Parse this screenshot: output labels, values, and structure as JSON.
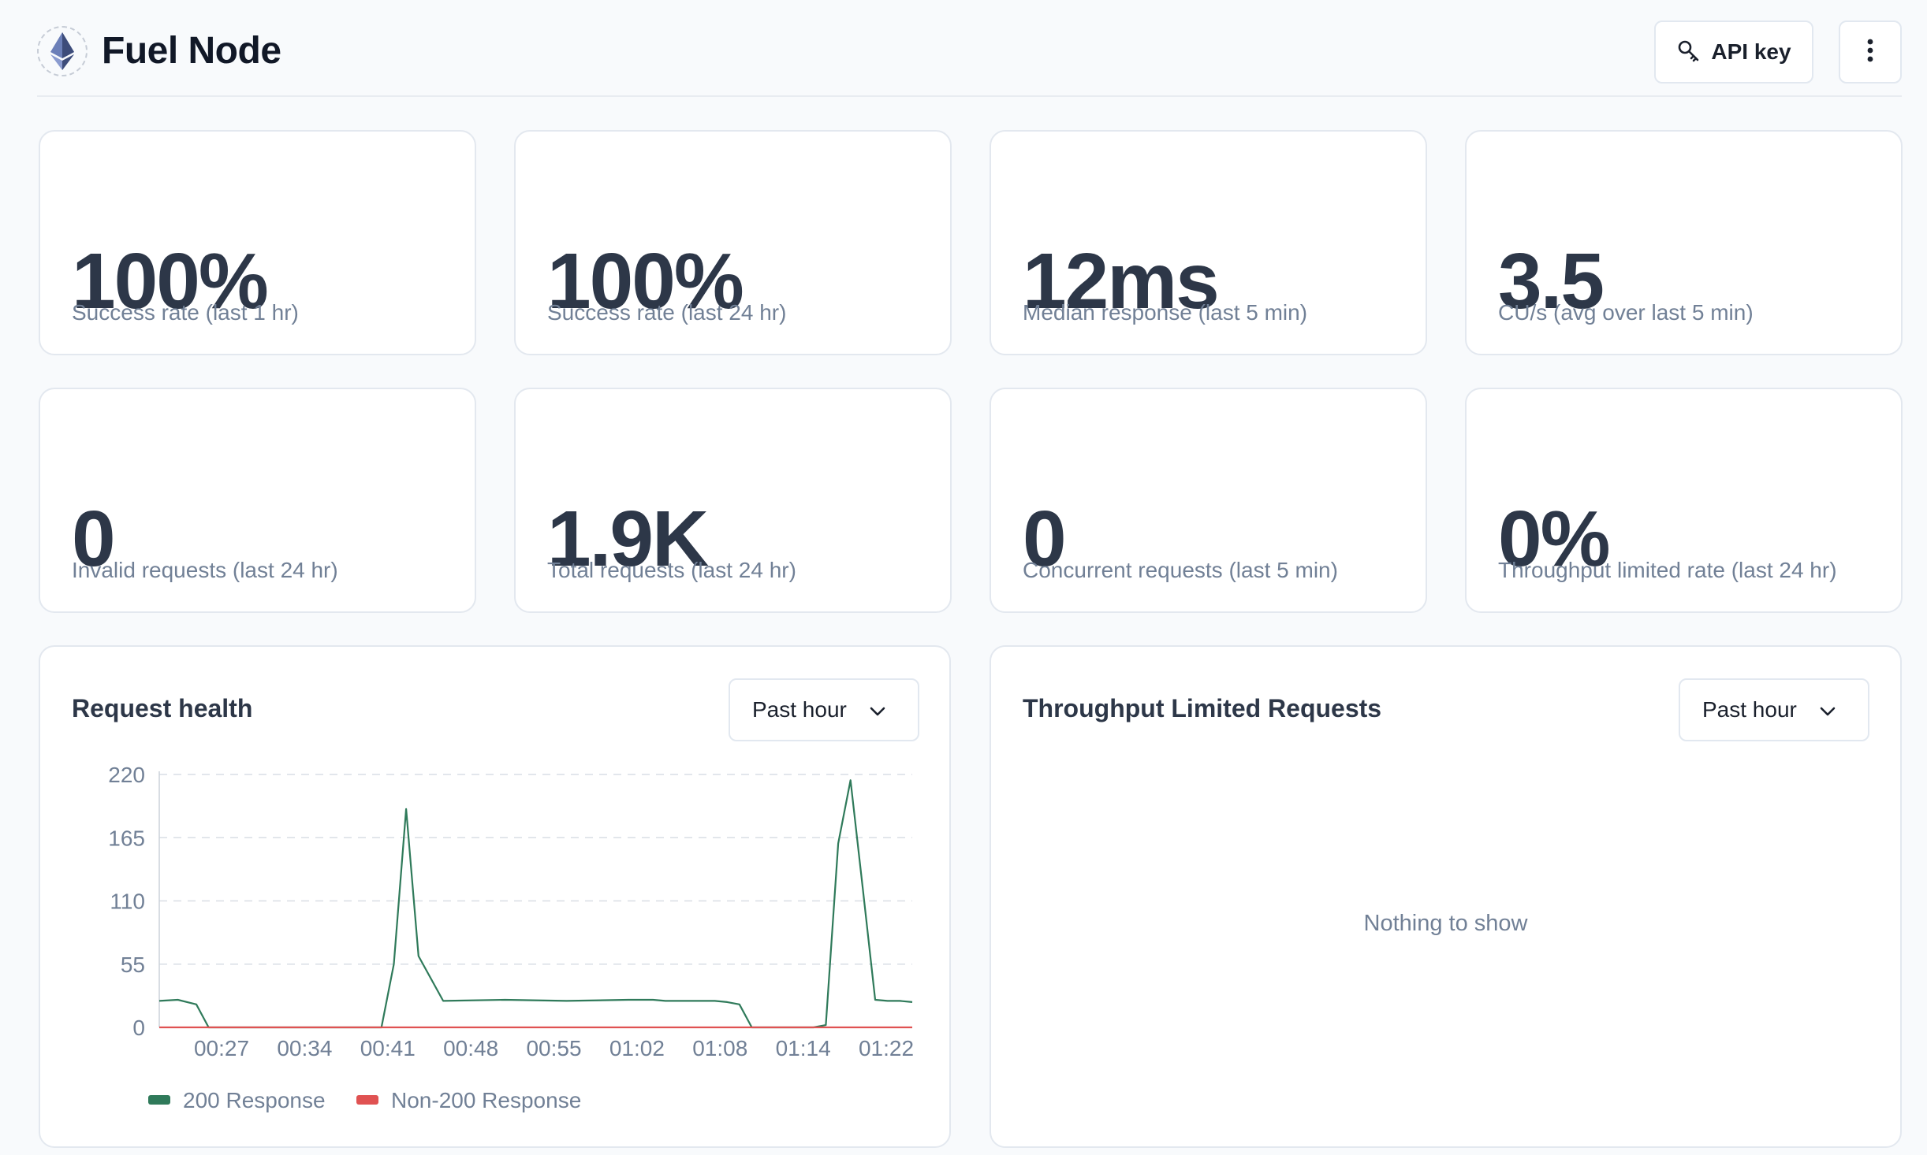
{
  "header": {
    "title": "Fuel Node",
    "logo_icon": "ethereum-icon",
    "api_key_label": "API key",
    "api_key_icon": "key-icon",
    "more_icon": "kebab-menu-icon"
  },
  "stats": [
    {
      "value": "100%",
      "label": "Success rate (last 1 hr)"
    },
    {
      "value": "100%",
      "label": "Success rate (last 24 hr)"
    },
    {
      "value": "12ms",
      "label": "Median response (last 5 min)"
    },
    {
      "value": "3.5",
      "label": "CU/s (avg over last 5 min)"
    },
    {
      "value": "0",
      "label": "Invalid requests (last 24 hr)"
    },
    {
      "value": "1.9K",
      "label": "Total requests (last 24 hr)"
    },
    {
      "value": "0",
      "label": "Concurrent requests (last 5 min)"
    },
    {
      "value": "0%",
      "label": "Throughput limited rate (last 24 hr)"
    }
  ],
  "request_health": {
    "title": "Request health",
    "range_label": "Past hour"
  },
  "throughput": {
    "title": "Throughput Limited Requests",
    "range_label": "Past hour",
    "empty_text": "Nothing to show"
  },
  "colors": {
    "series_200": "#2f7a5a",
    "series_non200": "#e05252",
    "grid": "#d9dee5"
  },
  "chart_data": {
    "type": "line",
    "title": "Request health",
    "xlabel": "",
    "ylabel": "",
    "ylim": [
      0,
      220
    ],
    "y_ticks": [
      0,
      55,
      110,
      165,
      220
    ],
    "x_ticks": [
      "00:27",
      "00:34",
      "00:41",
      "00:48",
      "00:55",
      "01:02",
      "01:08",
      "01:14",
      "01:22"
    ],
    "grid": true,
    "legend": "bottom-left",
    "x_range": [
      22,
      83
    ],
    "series": [
      {
        "name": "200 Response",
        "x": [
          22,
          23.5,
          25,
          26,
          27,
          28,
          35,
          40,
          41,
          42,
          43,
          45,
          50,
          55,
          60,
          62,
          63,
          64,
          65,
          66,
          67,
          68,
          69,
          70,
          71,
          72,
          73,
          74,
          75,
          76,
          77,
          78,
          79,
          80,
          81,
          82,
          83
        ],
        "y": [
          23,
          24,
          20,
          0,
          0,
          0,
          0,
          0,
          55,
          190,
          62,
          23,
          24,
          23,
          24,
          24,
          23,
          23,
          23,
          23,
          23,
          22,
          20,
          0,
          0,
          0,
          0,
          0,
          0,
          2,
          160,
          215,
          120,
          24,
          23,
          23,
          22
        ]
      },
      {
        "name": "Non-200 Response",
        "x": [
          22,
          83
        ],
        "y": [
          0,
          0
        ]
      }
    ]
  }
}
